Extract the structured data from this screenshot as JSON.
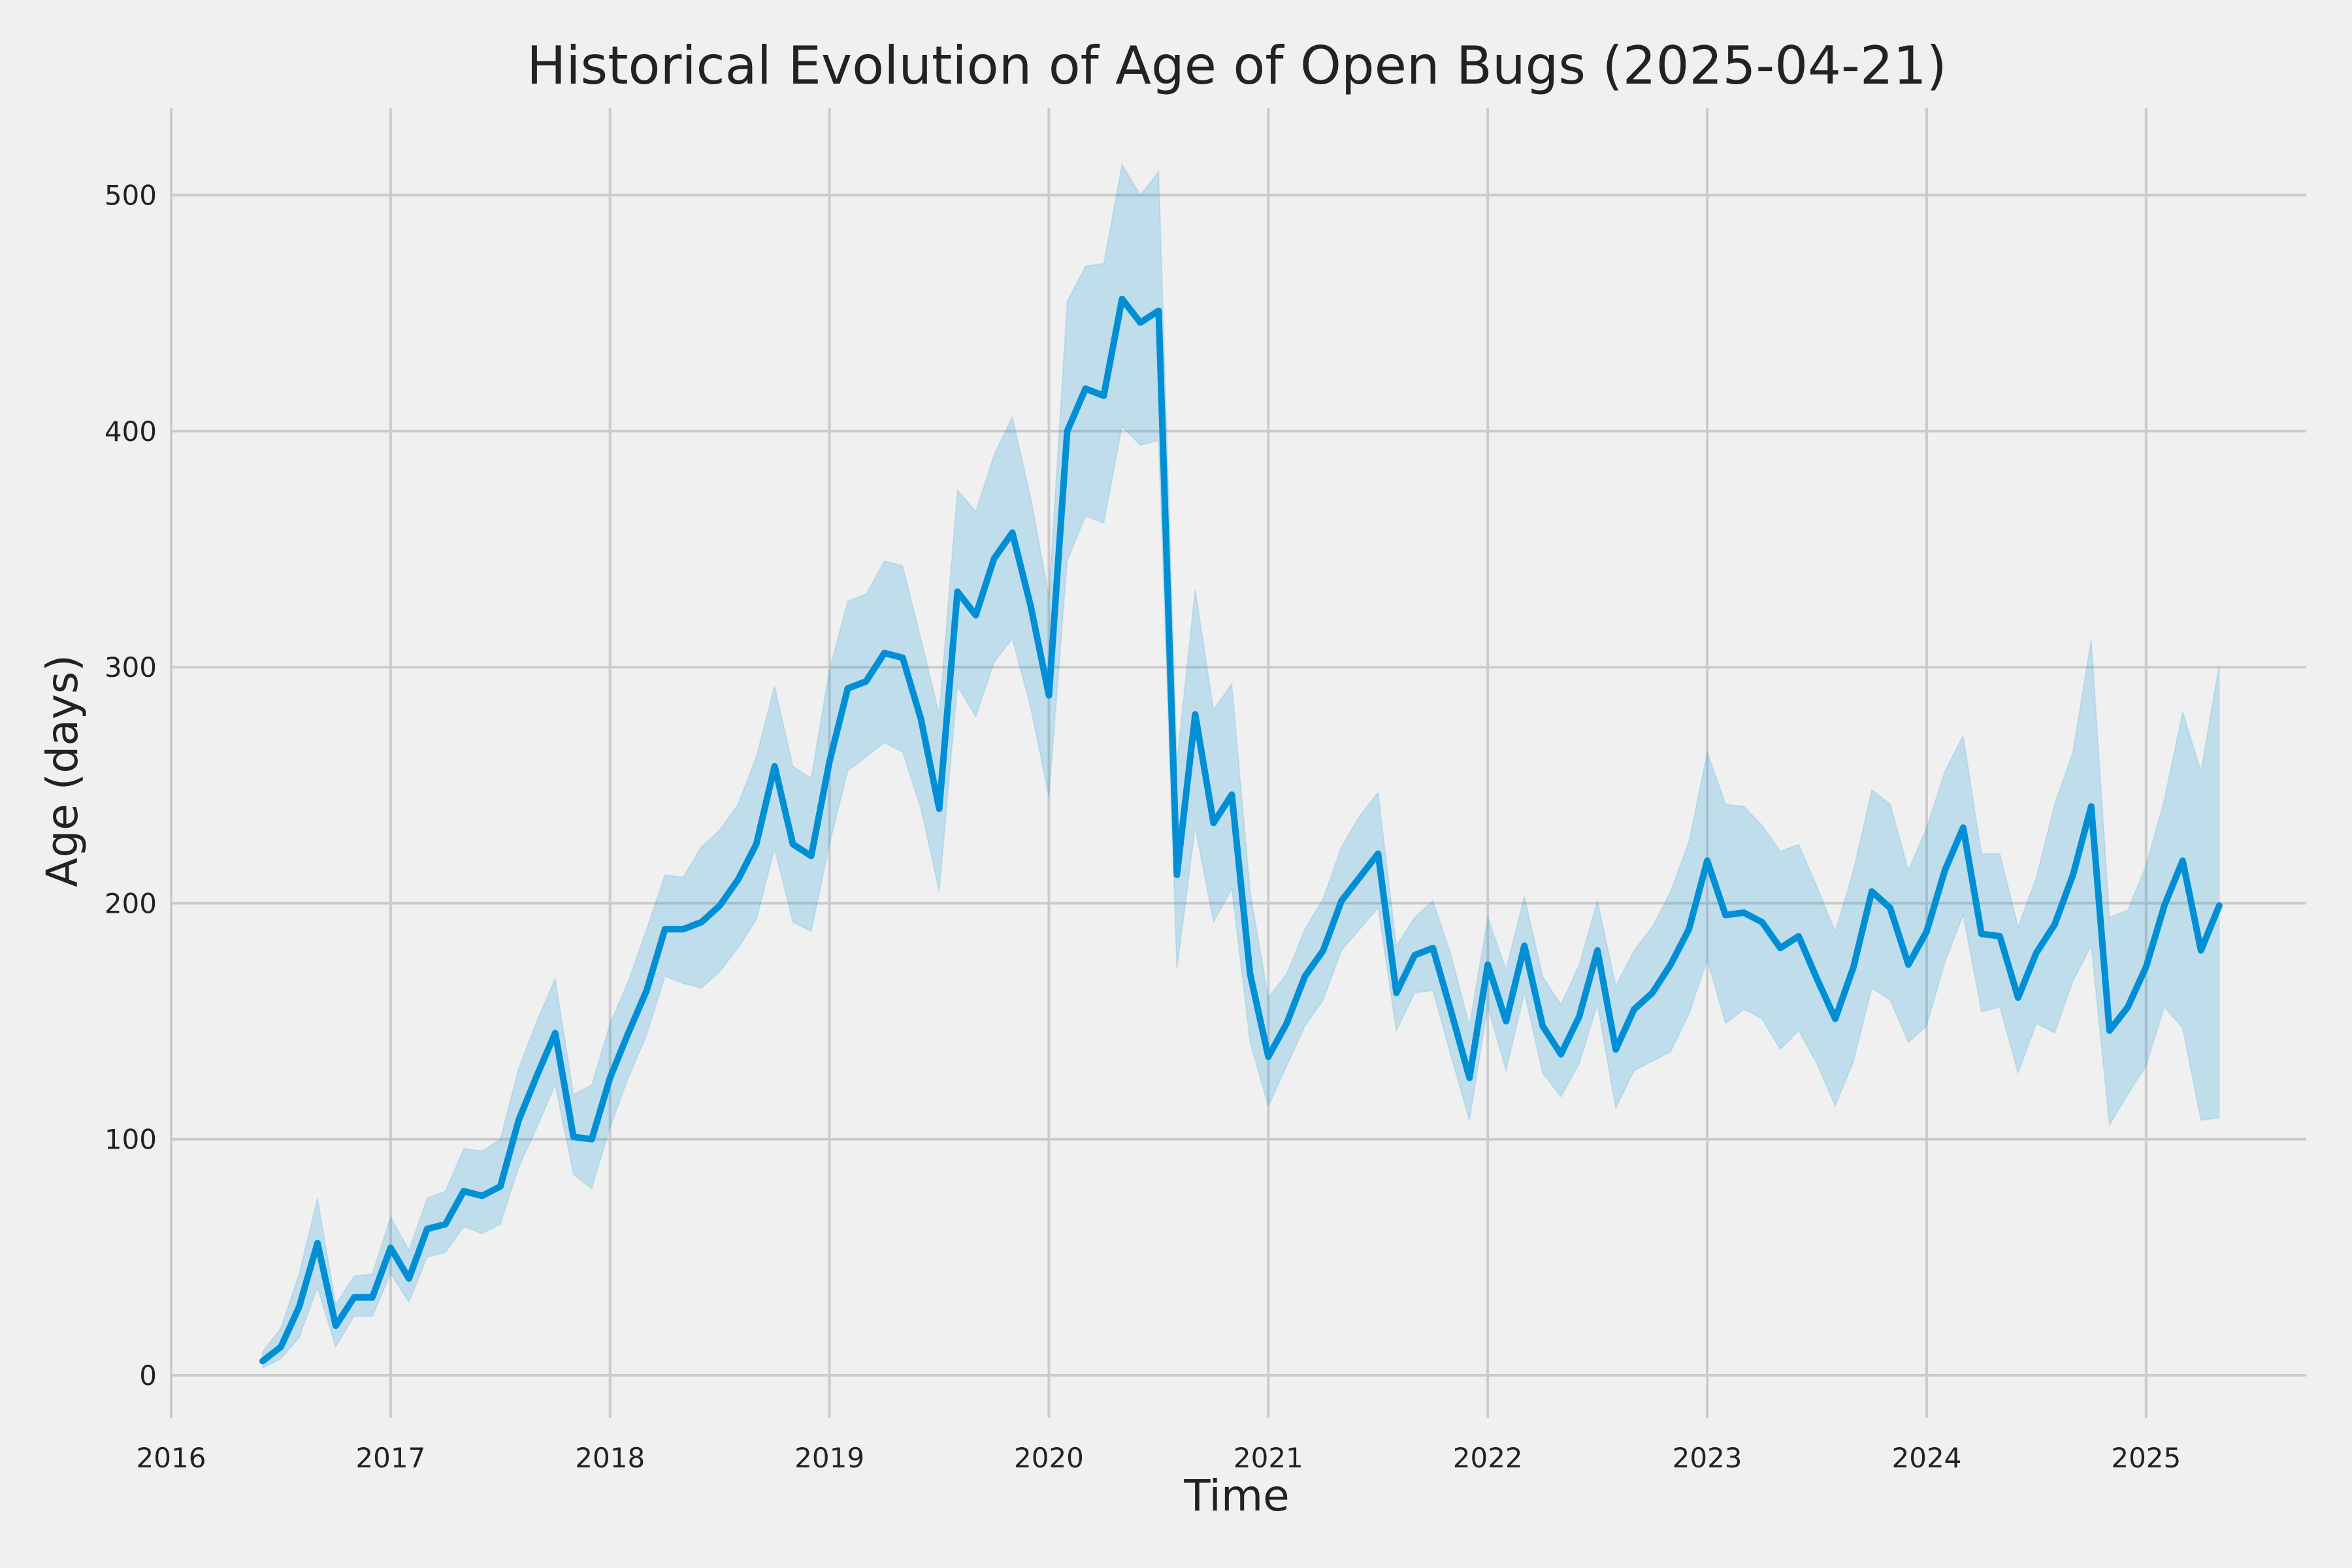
{
  "chart_data": {
    "type": "line",
    "title": "Historical Evolution of Age of Open Bugs (2025-04-21)",
    "xlabel": "Time",
    "ylabel": "Age (days)",
    "xlim": [
      2016.0,
      2025.73
    ],
    "ylim": [
      -18,
      537
    ],
    "grid": true,
    "x_ticks": [
      2016,
      2017,
      2018,
      2019,
      2020,
      2021,
      2022,
      2023,
      2024,
      2025
    ],
    "x_tick_labels": [
      "2016",
      "2017",
      "2018",
      "2019",
      "2020",
      "2021",
      "2022",
      "2023",
      "2024",
      "2025"
    ],
    "y_ticks": [
      0,
      100,
      200,
      300,
      400,
      500
    ],
    "y_tick_labels": [
      "0",
      "100",
      "200",
      "300",
      "400",
      "500"
    ],
    "colors": {
      "line": "#008fd5",
      "band": "#008fd5",
      "background": "#f0f0f0",
      "grid": "#cbcbcb"
    },
    "series": [
      {
        "x": [
          "2016-06",
          "2016-07",
          "2016-08",
          "2016-09",
          "2016-10",
          "2016-11",
          "2016-12",
          "2017-01",
          "2017-02",
          "2017-03",
          "2017-04",
          "2017-05",
          "2017-06",
          "2017-07",
          "2017-08",
          "2017-09",
          "2017-10",
          "2017-11",
          "2017-12",
          "2018-01",
          "2018-02",
          "2018-03",
          "2018-04",
          "2018-05",
          "2018-06",
          "2018-07",
          "2018-08",
          "2018-09",
          "2018-10",
          "2018-11",
          "2018-12",
          "2019-01",
          "2019-02",
          "2019-03",
          "2019-04",
          "2019-05",
          "2019-06",
          "2019-07",
          "2019-08",
          "2019-09",
          "2019-10",
          "2019-11",
          "2019-12",
          "2020-01",
          "2020-02",
          "2020-03",
          "2020-04",
          "2020-05",
          "2020-06",
          "2020-07",
          "2020-08",
          "2020-09",
          "2020-10",
          "2020-11",
          "2020-12",
          "2021-01",
          "2021-02",
          "2021-03",
          "2021-04",
          "2021-05",
          "2021-06",
          "2021-07",
          "2021-08",
          "2021-09",
          "2021-10",
          "2021-11",
          "2021-12",
          "2022-01",
          "2022-02",
          "2022-03",
          "2022-04",
          "2022-05",
          "2022-06",
          "2022-07",
          "2022-08",
          "2022-09",
          "2022-10",
          "2022-11",
          "2022-12",
          "2023-01",
          "2023-02",
          "2023-03",
          "2023-04",
          "2023-05",
          "2023-06",
          "2023-07",
          "2023-08",
          "2023-09",
          "2023-10",
          "2023-11",
          "2023-12",
          "2024-01",
          "2024-02",
          "2024-03",
          "2024-04",
          "2024-05",
          "2024-06",
          "2024-07",
          "2024-08",
          "2024-09",
          "2024-10",
          "2024-11",
          "2024-12",
          "2025-01",
          "2025-02",
          "2025-03",
          "2025-04",
          "2025-05"
        ],
        "y": [
          6,
          12,
          29,
          56,
          21,
          33,
          33,
          54,
          41,
          62,
          64,
          78,
          76,
          80,
          108,
          127,
          145,
          101,
          100,
          126,
          145,
          163,
          189,
          189,
          192,
          199,
          210,
          225,
          258,
          225,
          220,
          260,
          291,
          294,
          306,
          304,
          278,
          240,
          332,
          322,
          346,
          357,
          326,
          288,
          400,
          418,
          415,
          456,
          446,
          451,
          212,
          280,
          234,
          246,
          170,
          135,
          149,
          169,
          180,
          201,
          211,
          221,
          162,
          178,
          181,
          154,
          126,
          174,
          150,
          182,
          148,
          136,
          152,
          180,
          138,
          155,
          162,
          174,
          189,
          218,
          195,
          196,
          192,
          181,
          186,
          168,
          151,
          173,
          205,
          198,
          174,
          188,
          214,
          232,
          187,
          186,
          160,
          179,
          191,
          212,
          241,
          146,
          156,
          173,
          199,
          218,
          180,
          199
        ],
        "lower": [
          3,
          7,
          16,
          37,
          12,
          25,
          25,
          43,
          31,
          50,
          52,
          63,
          60,
          64,
          88,
          105,
          123,
          85,
          79,
          105,
          126,
          144,
          169,
          166,
          164,
          171,
          181,
          193,
          223,
          192,
          188,
          225,
          256,
          262,
          268,
          264,
          240,
          205,
          292,
          279,
          302,
          312,
          283,
          245,
          345,
          364,
          361,
          402,
          394,
          396,
          172,
          232,
          192,
          206,
          141,
          114,
          131,
          148,
          159,
          180,
          189,
          198,
          146,
          162,
          163,
          135,
          108,
          156,
          129,
          162,
          128,
          118,
          132,
          157,
          113,
          129,
          133,
          137,
          153,
          176,
          149,
          155,
          151,
          138,
          146,
          132,
          114,
          133,
          164,
          159,
          141,
          148,
          175,
          195,
          154,
          156,
          128,
          149,
          145,
          167,
          182,
          106,
          119,
          131,
          156,
          147,
          108,
          109
        ],
        "upper": [
          10,
          20,
          43,
          75,
          30,
          42,
          43,
          67,
          53,
          75,
          78,
          96,
          95,
          100,
          130,
          150,
          168,
          119,
          123,
          149,
          167,
          189,
          212,
          211,
          224,
          231,
          242,
          262,
          292,
          258,
          253,
          299,
          328,
          331,
          345,
          343,
          312,
          280,
          375,
          366,
          390,
          406,
          372,
          330,
          455,
          470,
          471,
          513,
          500,
          510,
          260,
          333,
          282,
          293,
          205,
          160,
          170,
          189,
          202,
          224,
          237,
          247,
          182,
          194,
          201,
          178,
          148,
          194,
          172,
          203,
          169,
          157,
          174,
          201,
          165,
          180,
          190,
          205,
          226,
          264,
          242,
          241,
          233,
          222,
          225,
          207,
          188,
          214,
          248,
          242,
          214,
          232,
          256,
          271,
          221,
          221,
          190,
          211,
          242,
          264,
          312,
          194,
          197,
          216,
          244,
          281,
          256,
          301
        ]
      }
    ]
  }
}
